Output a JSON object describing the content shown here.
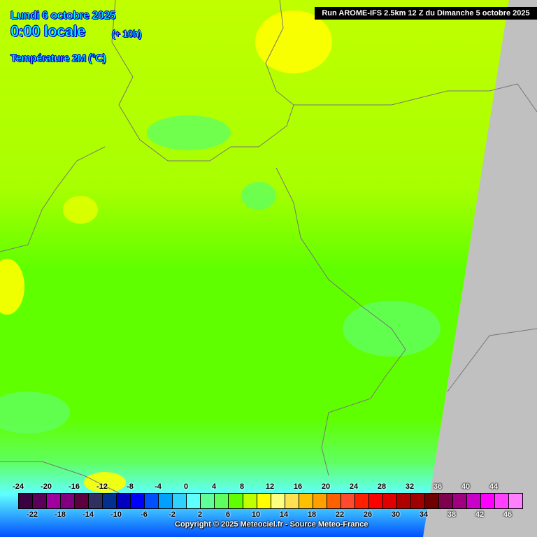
{
  "header": {
    "date": "Lundi 6 octobre 2025",
    "time": "0:00 locale",
    "offset": "(+ 10h)",
    "parameter": "Température 2M (°C)",
    "run": "Run AROME-IFS 2.5km 12 Z du Dimanche 5 octobre 2025"
  },
  "legend": {
    "top_labels": [
      "-24",
      "-20",
      "-16",
      "-12",
      "-8",
      "-4",
      "0",
      "4",
      "8",
      "12",
      "16",
      "20",
      "24",
      "28",
      "32",
      "36",
      "40",
      "44"
    ],
    "bottom_labels": [
      "-22",
      "-18",
      "-14",
      "-10",
      "-6",
      "-2",
      "2",
      "6",
      "10",
      "14",
      "18",
      "22",
      "26",
      "30",
      "34",
      "38",
      "42",
      "46"
    ],
    "colors": [
      "#3a0040",
      "#5a0058",
      "#a000a0",
      "#800080",
      "#5c0040",
      "#303060",
      "#003090",
      "#0000c0",
      "#0000ff",
      "#0050ff",
      "#00a0ff",
      "#30d0ff",
      "#60ffff",
      "#60ff98",
      "#60ff60",
      "#60ff00",
      "#c0ff00",
      "#ffff00",
      "#ffff80",
      "#ffe050",
      "#ffc000",
      "#ffa000",
      "#ff6000",
      "#ff4a30",
      "#ff2000",
      "#ff0000",
      "#e00000",
      "#b00000",
      "#a00000",
      "#700000",
      "#800050",
      "#a00080",
      "#c800c8",
      "#ff00ff",
      "#ff40ff",
      "#ff80ff"
    ]
  },
  "copyright": "Copyright © 2025 Meteociel.fr - Source Meteo-France"
}
